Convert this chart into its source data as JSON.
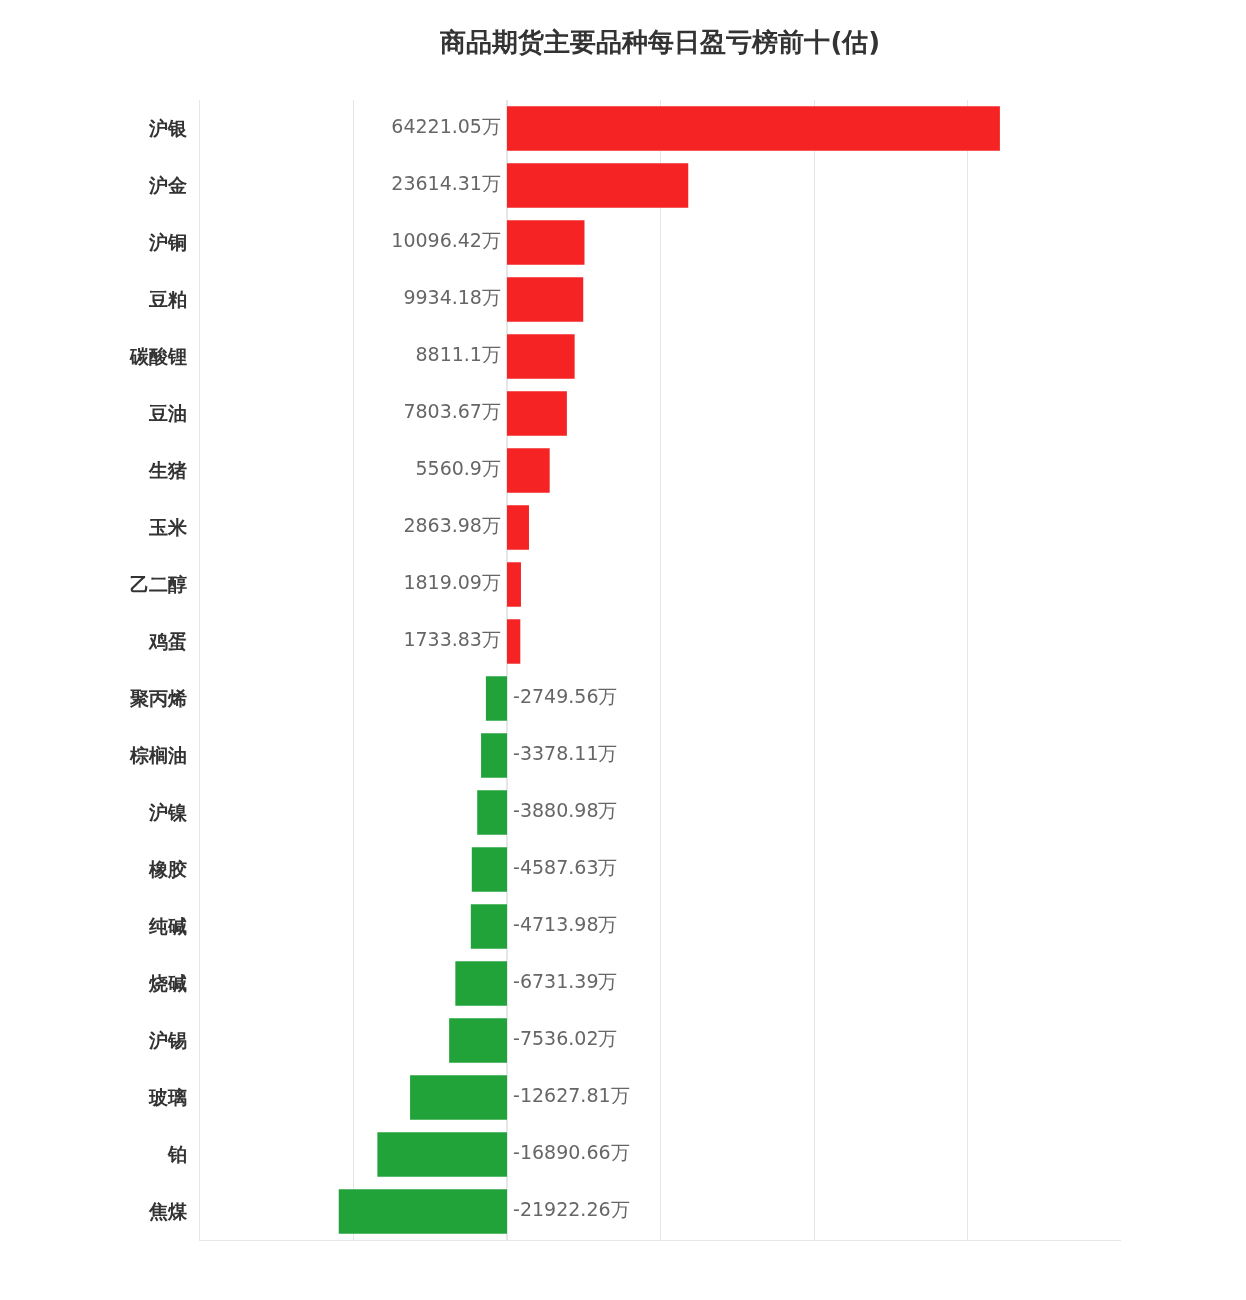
{
  "chart_data": {
    "type": "bar",
    "orientation": "horizontal",
    "title": "商品期货主要品种每日盈亏榜前十(估)",
    "categories": [
      "沪银",
      "沪金",
      "沪铜",
      "豆粕",
      "碳酸锂",
      "豆油",
      "生猪",
      "玉米",
      "乙二醇",
      "鸡蛋",
      "聚丙烯",
      "棕榈油",
      "沪镍",
      "橡胶",
      "纯碱",
      "烧碱",
      "沪锡",
      "玻璃",
      "铂",
      "焦煤"
    ],
    "values": [
      64221.05,
      23614.31,
      10096.42,
      9934.18,
      8811.1,
      7803.67,
      5560.9,
      2863.98,
      1819.09,
      1733.83,
      -2749.56,
      -3378.11,
      -3880.98,
      -4587.63,
      -4713.98,
      -6731.39,
      -7536.02,
      -12627.81,
      -16890.66,
      -21922.26
    ],
    "value_labels": [
      "64221.05万",
      "23614.31万",
      "10096.42万",
      "9934.18万",
      "8811.1万",
      "7803.67万",
      "5560.9万",
      "2863.98万",
      "1819.09万",
      "1733.83万",
      "-2749.56万",
      "-3378.11万",
      "-3880.98万",
      "-4587.63万",
      "-4713.98万",
      "-6731.39万",
      "-7536.02万",
      "-12627.81万",
      "-16890.66万",
      "-21922.26万"
    ],
    "colors": [
      "#f52323",
      "#f52323",
      "#f52323",
      "#f52323",
      "#f52323",
      "#f52323",
      "#f52323",
      "#f52323",
      "#f52323",
      "#f52323",
      "#21a33a",
      "#21a33a",
      "#21a33a",
      "#21a33a",
      "#21a33a",
      "#21a33a",
      "#21a33a",
      "#21a33a",
      "#21a33a",
      "#21a33a"
    ],
    "xlim": [
      -40000,
      80000
    ],
    "xticks": [
      {
        "value": -40000,
        "label": null
      },
      {
        "value": -20000,
        "label": null
      },
      {
        "value": 0,
        "label": null
      },
      {
        "value": 20000,
        "label": null
      },
      {
        "value": 40000,
        "label": null
      },
      {
        "value": 60000,
        "label": null
      }
    ],
    "grid": "x",
    "tick_labels": "y"
  }
}
